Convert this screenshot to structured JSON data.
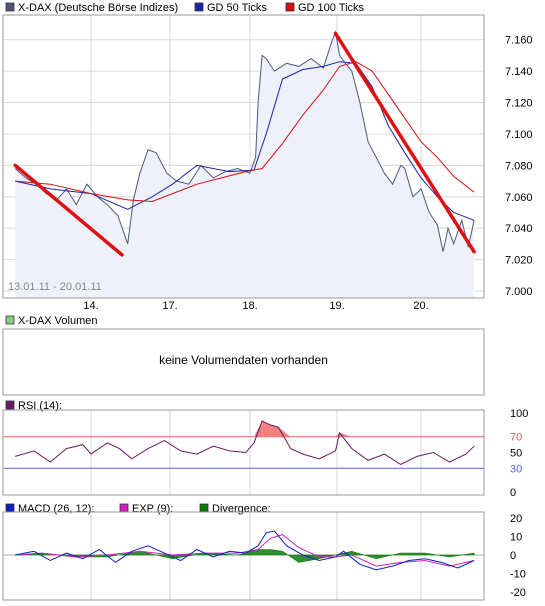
{
  "colors": {
    "price": "#4a5a76",
    "price_fill": "#eef1f9",
    "gd50": "#1c24a8",
    "gd100": "#d01010",
    "trend": "#e01010",
    "rsi": "#6a1a6a",
    "rsi_fill": "#f08080",
    "macd": "#1020c0",
    "exp": "#d020c0",
    "divergence": "#0a7a0a",
    "grid": "#d8d8d8",
    "border": "#999999",
    "rsi_line70": "#e06060",
    "rsi_line30": "#6060e0"
  },
  "price_panel": {
    "legend": [
      {
        "label": "X-DAX (Deutsche Börse Indizes)",
        "color": "#4a5a76"
      },
      {
        "label": "GD 50 Ticks",
        "color": "#1c24a8"
      },
      {
        "label": "GD 100 Ticks",
        "color": "#d01010"
      }
    ],
    "date_range": "13.01.11 - 20.01.11"
  },
  "volume_panel": {
    "legend_label": "X-DAX Volumen",
    "legend_color": "#88cc88",
    "message": "keine Volumendaten vorhanden"
  },
  "rsi_panel": {
    "legend_label": "RSI (14):",
    "legend_color": "#6a1a6a"
  },
  "macd_panel": {
    "legend": [
      {
        "label": "MACD (26, 12):",
        "color": "#1020c0"
      },
      {
        "label": "EXP (9):",
        "color": "#d020c0"
      },
      {
        "label": "Divergence:",
        "color": "#0a7a0a"
      }
    ]
  },
  "chart_data": [
    {
      "type": "line",
      "title": "X-DAX (Deutsche Börse Indizes)",
      "x_ticks": [
        0,
        1,
        2,
        3,
        4
      ],
      "x_tick_labels": [
        "14.",
        "17.",
        "18.",
        "19.",
        "20."
      ],
      "ylim": [
        7000,
        7170
      ],
      "y_ticks": [
        7000,
        7020,
        7040,
        7060,
        7080,
        7100,
        7120,
        7140,
        7160
      ],
      "y_tick_labels": [
        "7.000",
        "7.020",
        "7.040",
        "7.060",
        "7.080",
        "7.100",
        "7.120",
        "7.140",
        "7.160"
      ],
      "grid": true,
      "series": [
        {
          "name": "X-DAX (Deutsche Börse Indizes)",
          "x": [
            -0.93,
            -0.8,
            -0.67,
            -0.55,
            -0.42,
            -0.3,
            -0.18,
            -0.05,
            0.08,
            0.2,
            0.33,
            0.45,
            0.52,
            0.6,
            0.7,
            0.8,
            0.93,
            1.05,
            1.2,
            1.35,
            1.5,
            1.65,
            1.8,
            1.95,
            2.02,
            2.05,
            2.1,
            2.15,
            2.25,
            2.4,
            2.55,
            2.7,
            2.85,
            2.95,
            3.0,
            3.05,
            3.12,
            3.2,
            3.3,
            3.4,
            3.5,
            3.6,
            3.7,
            3.8,
            3.85,
            3.95,
            4.05,
            4.15,
            4.25,
            4.32,
            4.38,
            4.45,
            4.55,
            4.63,
            4.7
          ],
          "values": [
            7078,
            7072,
            7068,
            7062,
            7058,
            7065,
            7055,
            7068,
            7060,
            7055,
            7048,
            7030,
            7058,
            7075,
            7090,
            7088,
            7075,
            7070,
            7068,
            7080,
            7072,
            7076,
            7078,
            7075,
            7085,
            7120,
            7150,
            7148,
            7140,
            7145,
            7143,
            7148,
            7142,
            7158,
            7165,
            7150,
            7145,
            7140,
            7120,
            7095,
            7085,
            7075,
            7068,
            7080,
            7078,
            7060,
            7065,
            7050,
            7042,
            7025,
            7040,
            7030,
            7045,
            7028,
            7045
          ]
        },
        {
          "name": "GD 50 Ticks",
          "x": [
            -0.93,
            -0.5,
            0.0,
            0.45,
            0.75,
            1.0,
            1.3,
            1.7,
            2.0,
            2.15,
            2.35,
            2.6,
            2.85,
            3.05,
            3.25,
            3.45,
            3.65,
            3.85,
            4.05,
            4.25,
            4.45,
            4.7
          ],
          "values": [
            7070,
            7065,
            7062,
            7052,
            7060,
            7068,
            7080,
            7076,
            7077,
            7100,
            7135,
            7141,
            7143,
            7146,
            7145,
            7130,
            7105,
            7088,
            7072,
            7060,
            7050,
            7045
          ]
        },
        {
          "name": "GD 100 Ticks",
          "x": [
            -0.93,
            -0.5,
            0.0,
            0.45,
            0.75,
            1.0,
            1.3,
            1.6,
            1.9,
            2.1,
            2.35,
            2.6,
            2.85,
            3.05,
            3.25,
            3.45,
            3.65,
            3.85,
            4.05,
            4.25,
            4.45,
            4.7
          ],
          "values": [
            7070,
            7068,
            7062,
            7058,
            7057,
            7062,
            7068,
            7072,
            7076,
            7078,
            7094,
            7112,
            7128,
            7143,
            7146,
            7140,
            7125,
            7110,
            7095,
            7085,
            7073,
            7063
          ]
        }
      ],
      "annotations": [
        {
          "type": "trendline",
          "x": [
            -0.93,
            0.38
          ],
          "values": [
            7080,
            7023
          ]
        },
        {
          "type": "trendline",
          "x": [
            3.0,
            4.7
          ],
          "values": [
            7164,
            7025
          ]
        }
      ]
    },
    {
      "type": "line",
      "title": "RSI (14):",
      "ylim": [
        0,
        100
      ],
      "y_ticks": [
        100,
        70,
        50,
        30,
        0
      ],
      "y_tick_labels": [
        "100",
        "70",
        "50",
        "30",
        "0"
      ],
      "series": [
        {
          "name": "RSI (14):",
          "x": [
            -0.93,
            -0.7,
            -0.5,
            -0.3,
            -0.1,
            0.0,
            0.2,
            0.35,
            0.5,
            0.7,
            0.9,
            1.1,
            1.3,
            1.5,
            1.7,
            1.9,
            2.0,
            2.1,
            2.2,
            2.3,
            2.45,
            2.6,
            2.8,
            3.0,
            3.05,
            3.2,
            3.4,
            3.6,
            3.8,
            4.0,
            4.2,
            4.4,
            4.6,
            4.7
          ],
          "values": [
            45,
            52,
            38,
            55,
            60,
            48,
            62,
            55,
            42,
            55,
            65,
            52,
            48,
            58,
            52,
            50,
            62,
            90,
            85,
            82,
            55,
            48,
            42,
            52,
            75,
            55,
            40,
            48,
            35,
            45,
            50,
            38,
            48,
            58
          ]
        }
      ]
    },
    {
      "type": "line",
      "title": "MACD (26, 12):",
      "ylim": [
        -20,
        20
      ],
      "y_ticks": [
        20,
        10,
        0,
        -10,
        -20
      ],
      "y_tick_labels": [
        "20",
        "10",
        "0",
        "-10",
        "-20"
      ],
      "series": [
        {
          "name": "MACD (26, 12):",
          "x": [
            -0.93,
            -0.7,
            -0.5,
            -0.3,
            -0.1,
            0.1,
            0.3,
            0.5,
            0.7,
            0.9,
            1.1,
            1.3,
            1.5,
            1.7,
            1.9,
            2.05,
            2.15,
            2.25,
            2.4,
            2.6,
            2.8,
            3.0,
            3.1,
            3.3,
            3.5,
            3.7,
            3.9,
            4.1,
            4.3,
            4.5,
            4.7
          ],
          "values": [
            0,
            2,
            -3,
            1,
            -2,
            3,
            -4,
            2,
            5,
            1,
            -3,
            3,
            -1,
            2,
            1,
            5,
            12,
            13,
            5,
            0,
            -3,
            -1,
            2,
            -5,
            -8,
            -6,
            -3,
            -2,
            -4,
            -7,
            -3
          ]
        },
        {
          "name": "EXP (9):",
          "x": [
            -0.93,
            -0.6,
            -0.2,
            0.2,
            0.6,
            1.0,
            1.4,
            1.8,
            2.05,
            2.2,
            2.35,
            2.55,
            2.8,
            3.0,
            3.2,
            3.5,
            3.8,
            4.1,
            4.4,
            4.7
          ],
          "values": [
            0,
            1,
            -1,
            0,
            2,
            0,
            1,
            1,
            3,
            9,
            11,
            4,
            -1,
            -1,
            0,
            -6,
            -4,
            -3,
            -6,
            -3
          ]
        },
        {
          "name": "Divergence:",
          "x": [
            -0.93,
            -0.6,
            -0.2,
            0.2,
            0.6,
            1.0,
            1.4,
            1.8,
            2.05,
            2.2,
            2.35,
            2.55,
            2.8,
            3.0,
            3.2,
            3.5,
            3.8,
            4.1,
            4.4,
            4.7
          ],
          "values": [
            0,
            1,
            -1,
            -1,
            2,
            -2,
            1,
            0,
            3,
            3,
            2,
            -4,
            -2,
            0,
            2,
            -2,
            1,
            1,
            -1,
            1
          ]
        }
      ]
    }
  ]
}
